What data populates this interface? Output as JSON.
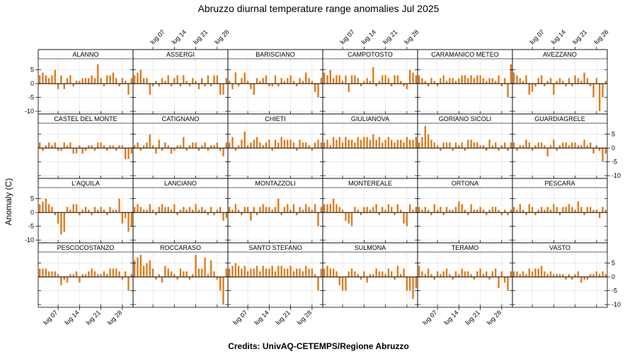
{
  "page": {
    "title": "Abruzzo diurnal temperature range anomalies Jul 2025",
    "credits": "Credits: UnivAQ-CETEMPS/Regione Abruzzo",
    "ylabel": "Anomaly (C)"
  },
  "colors": {
    "bar": "#e07b19",
    "grid": "#e6e6e6",
    "zero": "#000000",
    "strip": "#ffffff"
  },
  "chart_data": {
    "type": "bar",
    "layout": "6 columns x 4 rows",
    "x_tick_labels": [
      "lug 07",
      "lug 14",
      "lug 21",
      "lug 28"
    ],
    "x_tick_days": [
      7,
      14,
      21,
      28
    ],
    "xlim": [
      1,
      31
    ],
    "ylim": [
      -11,
      9
    ],
    "y_ticks": [
      -10,
      -5,
      0,
      5
    ],
    "grid": true,
    "panels": [
      {
        "name": "ALANNO",
        "values": [
          3,
          4,
          3,
          2,
          3,
          5,
          -2,
          3,
          -2,
          2,
          3,
          -1,
          1,
          1,
          2,
          2,
          2,
          3,
          2,
          7,
          2,
          -1,
          3,
          3,
          4,
          2,
          -1,
          2,
          1,
          -4,
          2
        ]
      },
      {
        "name": "ASSERGI",
        "values": [
          3,
          4,
          5,
          2,
          2,
          -4,
          -1,
          1,
          -1,
          2,
          1,
          3,
          -1,
          2,
          3,
          -1,
          3,
          1,
          -1,
          2,
          1,
          -2,
          2,
          -1,
          3,
          -1,
          3,
          3,
          -4,
          -4,
          2
        ]
      },
      {
        "name": "BARISCIANO",
        "values": [
          1,
          -2,
          4,
          -1,
          2,
          4,
          1,
          -2,
          -4,
          2,
          1,
          2,
          3,
          -1,
          -1,
          3,
          -1,
          2,
          1,
          2,
          3,
          1,
          -1,
          2,
          1,
          4,
          2,
          1,
          -3,
          -5,
          2
        ]
      },
      {
        "name": "CAMPOTOSTO",
        "values": [
          4,
          3,
          5,
          2,
          3,
          3,
          1,
          3,
          -3,
          3,
          3,
          2,
          -1,
          1,
          2,
          1,
          6,
          -1,
          1,
          3,
          3,
          2,
          -1,
          3,
          3,
          1,
          -1,
          -2,
          5,
          4,
          3
        ]
      },
      {
        "name": "CARAMANICO METEO",
        "values": [
          3,
          2,
          1,
          -1,
          2,
          1,
          -1,
          2,
          3,
          1,
          2,
          2,
          1,
          2,
          3,
          3,
          2,
          3,
          2,
          3,
          3,
          2,
          1,
          2,
          2,
          1,
          3,
          -1,
          2,
          -5,
          7
        ]
      },
      {
        "name": "AVEZZANO",
        "values": [
          4,
          3,
          2,
          1,
          3,
          -4,
          -3,
          -1,
          2,
          3,
          -1,
          1,
          2,
          -4,
          1,
          2,
          1,
          -1,
          2,
          -1,
          3,
          2,
          1,
          4,
          2,
          -1,
          -5,
          2,
          -10,
          -5,
          1
        ]
      },
      {
        "name": "CASTEL DEL MONTE",
        "values": [
          2,
          -1,
          1,
          2,
          1,
          2,
          -1,
          -1,
          2,
          1,
          2,
          -2,
          -2,
          1,
          -2,
          -1,
          1,
          1,
          -1,
          2,
          2,
          1,
          -1,
          1,
          1,
          -1,
          1,
          1,
          -4,
          -4,
          -2
        ]
      },
      {
        "name": "CATIGNANO",
        "values": [
          1,
          2,
          -1,
          1,
          2,
          5,
          1,
          -2,
          3,
          -1,
          2,
          1,
          -2,
          -1,
          1,
          1,
          4,
          -1,
          1,
          2,
          2,
          -1,
          1,
          2,
          -1,
          1,
          1,
          2,
          -1,
          -3,
          2
        ]
      },
      {
        "name": "CHIETI",
        "values": [
          2,
          4,
          -1,
          1,
          3,
          6,
          1,
          2,
          3,
          4,
          2,
          1,
          2,
          3,
          -1,
          3,
          2,
          4,
          3,
          3,
          3,
          2,
          -1,
          3,
          2,
          2,
          1,
          -1,
          2,
          3,
          2
        ]
      },
      {
        "name": "GIULIANOVA",
        "values": [
          2,
          3,
          1,
          4,
          3,
          4,
          2,
          4,
          3,
          3,
          2,
          4,
          3,
          4,
          4,
          3,
          5,
          3,
          4,
          2,
          3,
          4,
          3,
          2,
          3,
          3,
          2,
          4,
          3,
          3,
          4
        ]
      },
      {
        "name": "GORIANO SICOLI",
        "values": [
          2,
          4,
          8,
          5,
          3,
          2,
          1,
          -1,
          2,
          2,
          2,
          -1,
          2,
          1,
          2,
          -1,
          3,
          3,
          2,
          2,
          1,
          1,
          -1,
          3,
          1,
          2,
          -1,
          1,
          2,
          -1,
          2
        ]
      },
      {
        "name": "GUARDIAGRELE",
        "values": [
          2,
          -1,
          1,
          1,
          3,
          2,
          -1,
          1,
          2,
          2,
          1,
          -3,
          1,
          3,
          -1,
          1,
          2,
          2,
          1,
          2,
          2,
          1,
          1,
          3,
          1,
          2,
          -2,
          1,
          -1,
          -5,
          -2
        ]
      },
      {
        "name": "L'AQUILA",
        "values": [
          3,
          4,
          5,
          3,
          2,
          -1,
          -4,
          -8,
          -7,
          2,
          1,
          3,
          3,
          -1,
          1,
          2,
          1,
          -1,
          2,
          1,
          2,
          1,
          -1,
          2,
          1,
          1,
          5,
          -4,
          -2,
          -7,
          -5
        ]
      },
      {
        "name": "LANCIANO",
        "values": [
          2,
          3,
          2,
          1,
          1,
          3,
          1,
          -1,
          2,
          3,
          2,
          2,
          1,
          3,
          -1,
          1,
          2,
          1,
          2,
          1,
          3,
          1,
          2,
          1,
          -1,
          2,
          -1,
          1,
          2,
          -3,
          -2
        ]
      },
      {
        "name": "MONTAZZOLI",
        "values": [
          2,
          1,
          3,
          1,
          -1,
          2,
          2,
          -3,
          2,
          -1,
          2,
          3,
          2,
          2,
          1,
          2,
          5,
          -1,
          2,
          3,
          1,
          3,
          -1,
          2,
          1,
          3,
          2,
          1,
          3,
          -5,
          2
        ]
      },
      {
        "name": "MONTEREALE",
        "values": [
          3,
          3,
          3,
          5,
          3,
          2,
          1,
          -3,
          -4,
          -5,
          2,
          1,
          -1,
          2,
          2,
          1,
          2,
          3,
          -1,
          2,
          1,
          3,
          2,
          -1,
          3,
          1,
          -4,
          -5,
          3,
          1,
          2
        ]
      },
      {
        "name": "ORTONA",
        "values": [
          2,
          1,
          2,
          1,
          -1,
          3,
          1,
          2,
          -1,
          2,
          1,
          1,
          2,
          4,
          3,
          1,
          -1,
          3,
          1,
          1,
          2,
          1,
          -1,
          1,
          2,
          2,
          1,
          -1,
          1,
          -1,
          1
        ]
      },
      {
        "name": "PESCARA",
        "values": [
          2,
          1,
          3,
          1,
          -1,
          3,
          2,
          -1,
          1,
          2,
          1,
          2,
          1,
          3,
          2,
          -1,
          2,
          2,
          3,
          2,
          1,
          4,
          2,
          -1,
          2,
          2,
          1,
          1,
          -2,
          2,
          1
        ]
      },
      {
        "name": "PESCOCOSTANZO",
        "values": [
          3,
          3,
          3,
          2,
          2,
          2,
          1,
          -3,
          -1,
          -2,
          1,
          1,
          2,
          -2,
          1,
          1,
          2,
          3,
          2,
          1,
          1,
          2,
          1,
          3,
          3,
          3,
          2,
          -1,
          2,
          -5,
          1
        ]
      },
      {
        "name": "ROCCARASO",
        "values": [
          6,
          7,
          8,
          4,
          5,
          6,
          3,
          -1,
          1,
          -2,
          4,
          3,
          2,
          1,
          -1,
          3,
          2,
          2,
          -1,
          1,
          8,
          3,
          3,
          7,
          1,
          6,
          2,
          -1,
          -5,
          -10,
          3
        ]
      },
      {
        "name": "SANTO STEFANO",
        "values": [
          3,
          4,
          5,
          4,
          3,
          4,
          2,
          3,
          3,
          4,
          2,
          4,
          3,
          3,
          4,
          2,
          4,
          4,
          3,
          3,
          4,
          2,
          3,
          3,
          2,
          4,
          3,
          3,
          1,
          -5,
          3
        ]
      },
      {
        "name": "SULMONA",
        "values": [
          3,
          4,
          3,
          3,
          2,
          -3,
          -5,
          -5,
          2,
          3,
          2,
          1,
          -1,
          2,
          -2,
          1,
          1,
          3,
          2,
          2,
          1,
          3,
          2,
          -1,
          4,
          1,
          3,
          -5,
          -5,
          -8,
          -4
        ]
      },
      {
        "name": "TERAMO",
        "values": [
          4,
          2,
          1,
          3,
          1,
          -1,
          2,
          1,
          2,
          3,
          1,
          -1,
          2,
          1,
          3,
          2,
          2,
          1,
          -1,
          2,
          3,
          1,
          2,
          -1,
          2,
          3,
          -4,
          2,
          -2,
          -5,
          2
        ]
      },
      {
        "name": "VASTO",
        "values": [
          2,
          2,
          1,
          2,
          1,
          3,
          2,
          3,
          3,
          4,
          2,
          1,
          2,
          1,
          1,
          1,
          1,
          -1,
          1,
          -1,
          1,
          2,
          -2,
          -1,
          -1,
          1,
          1,
          2,
          1,
          2,
          1
        ]
      }
    ]
  }
}
